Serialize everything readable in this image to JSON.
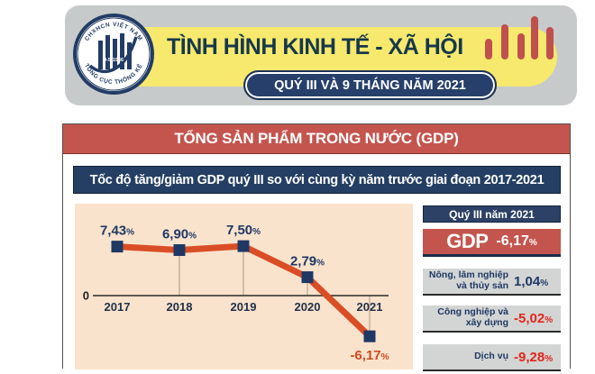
{
  "header": {
    "title": "TÌNH HÌNH KINH TẾ - XÃ HỘI",
    "subtitle": "QUÝ III VÀ 9 THÁNG NĂM 2021",
    "logo": {
      "top_text": "CHXHCN VIỆT NAM",
      "bottom_text": "TỔNG CỤC THỐNG KÊ",
      "center_text": "9-5-1946"
    },
    "bars_icon_heights": [
      23,
      39,
      29,
      48,
      36
    ]
  },
  "section": {
    "title": "TỔNG SẢN PHẨM TRONG NƯỚC (GDP)"
  },
  "chart_data": {
    "type": "line",
    "title": "Tốc độ tăng/giảm GDP quý III so với cùng kỳ năm trước giai đoạn 2017-2021",
    "categories": [
      "2017",
      "2018",
      "2019",
      "2020",
      "2021"
    ],
    "values": [
      7.43,
      6.9,
      7.5,
      2.79,
      -6.17
    ],
    "labels": [
      "7,43",
      "6,90",
      "7,50",
      "2,79",
      "-6,17"
    ],
    "unit": "%",
    "baseline_label": "0",
    "ylim": [
      -8.5,
      10
    ],
    "grid": "vertical-stems-only",
    "legend": "none",
    "line_color": "#d94e26",
    "marker_color": "#1f3864",
    "positive_label_color": "#1f3864",
    "negative_label_color": "#cf4a1f",
    "background_color": "#fae3cc"
  },
  "side_panel": {
    "header": "Quý III năm 2021",
    "gdp": {
      "label": "GDP",
      "value": "-6,17",
      "unit": "%"
    },
    "rows": [
      {
        "label": "Nông, lâm nghiệp và thủy sản",
        "value": "1,04",
        "unit": "%",
        "trend": "pos"
      },
      {
        "label": "Công nghiệp và xây dựng",
        "value": "-5,02",
        "unit": "%",
        "trend": "neg"
      },
      {
        "label": "Dịch vụ",
        "value": "-9,28",
        "unit": "%",
        "trend": "neg"
      }
    ]
  },
  "colors": {
    "accent_red": "#c4554e",
    "navy": "#243f63",
    "yellow": "#f6e96d",
    "header_gray": "#c7cacb",
    "chart_peach": "#fae3cc",
    "row_gray": "#d2d5d3",
    "negative_value": "#e0261b",
    "positive_value": "#1f3864"
  }
}
